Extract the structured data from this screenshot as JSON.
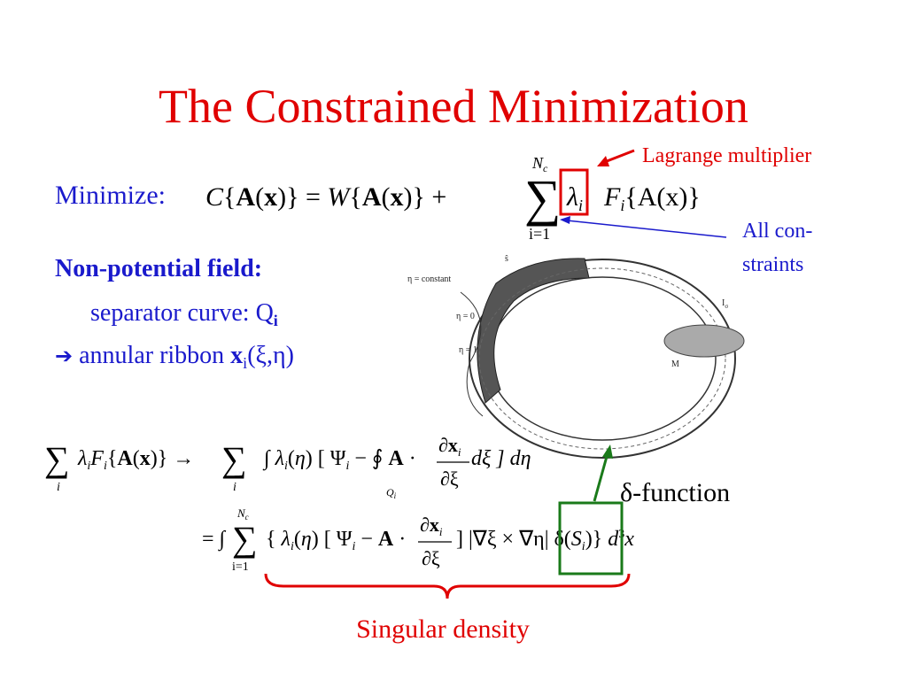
{
  "title": "The Constrained Minimization",
  "annotations": {
    "lagrange": "Lagrange multiplier",
    "constraints": [
      "All con-",
      "straints"
    ],
    "delta": "δ-function",
    "singular": "Singular density"
  },
  "left": {
    "heading": "Non-potential field:",
    "line1": "separator curve:  Q",
    "line1_sub": "i",
    "arrow": "➔",
    "line2": " annular ribbon ",
    "line2_bold": "x",
    "line2_sub": "i",
    "line2_rest": "(ξ,η)"
  },
  "eq1": {
    "label": "Minimize:",
    "pieces": [
      "C",
      "{",
      "A",
      "(",
      "x",
      ")} = ",
      "W",
      "{",
      "A",
      "(",
      "x",
      ")} +"
    ],
    "sum": "∑",
    "upper": "N",
    "upper_sub": "c",
    "lower": "i=1",
    "lambda": "λ",
    "lambda_sub": "i",
    "f": "F",
    "f_sub": "i",
    "f_rest": "{A(x)}"
  },
  "eq2": {
    "sum1": "∑",
    "sum1_sub": "i",
    "pieces": [
      "λ",
      "i",
      "F",
      "i",
      "{",
      "A",
      "(",
      "x",
      ")} →"
    ],
    "sum2": "∑",
    "sum2_sub": "i",
    "mid": [
      "∫ ",
      "λ",
      "i",
      "(",
      "η",
      ") [ Ψ",
      "i",
      " − ∮ ",
      "A",
      " ·"
    ],
    "contour_sub": "Q",
    "contour_sub_i": "i",
    "num": "∂x",
    "num_sub": "i",
    "den": "∂ξ",
    "end": " dξ ] dη"
  },
  "eq3": {
    "start": "= ∫",
    "sum": "∑",
    "upper": "N",
    "upper_sub": "c",
    "lower": "i=1",
    "mid": [
      "{ ",
      "λ",
      "i",
      "(",
      "η",
      ") [ Ψ",
      "i",
      " − ",
      "A",
      " ·"
    ],
    "num": "∂x",
    "num_sub": "i",
    "den": "∂ξ",
    "end": [
      "] |∇ξ × ∇η| δ(",
      "S",
      "i",
      ")} ",
      "d",
      "3",
      "x"
    ]
  },
  "figure": {
    "eta_const": "η = constant",
    "eta0": "η = 0",
    "eta1": "η = 1",
    "m": "M",
    "i": "I",
    "i_sub": "σ",
    "s": "ŝ"
  }
}
